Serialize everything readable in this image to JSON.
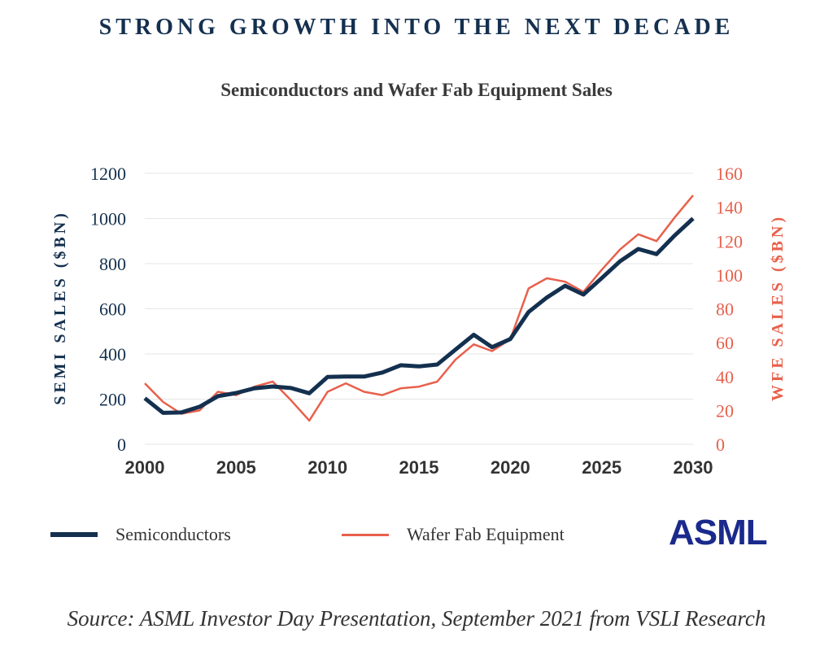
{
  "headline": "STRONG GROWTH INTO THE NEXT DECADE",
  "colors": {
    "semis": "#14304f",
    "wfe": "#e8604c",
    "logo": "#1a2a8c",
    "grid": "#e6e6e6"
  },
  "logo_text": "ASML",
  "source": "Source: ASML Investor Day Presentation, September 2021 from VSLI Research",
  "chart_data": {
    "type": "line",
    "title": "Semiconductors and Wafer Fab Equipment Sales",
    "xlabel": "",
    "ylabel": "SEMI SALES ($BN)",
    "y2label": "WFE SALES ($BN)",
    "xlim": [
      2000,
      2030
    ],
    "ylim": [
      0,
      1200
    ],
    "y2lim": [
      0,
      160
    ],
    "xticks": [
      2000,
      2005,
      2010,
      2015,
      2020,
      2025,
      2030
    ],
    "yticks": [
      0,
      200,
      400,
      600,
      800,
      1000,
      1200
    ],
    "y2ticks": [
      0,
      20,
      40,
      60,
      80,
      100,
      120,
      140,
      160
    ],
    "grid": true,
    "legend_position": "bottom",
    "x": [
      2000,
      2001,
      2002,
      2003,
      2004,
      2005,
      2006,
      2007,
      2008,
      2009,
      2010,
      2011,
      2012,
      2013,
      2014,
      2015,
      2016,
      2017,
      2018,
      2019,
      2020,
      2021,
      2022,
      2023,
      2024,
      2025,
      2026,
      2027,
      2028,
      2029,
      2030
    ],
    "series": [
      {
        "name": "Semiconductors",
        "axis": "left",
        "values": [
          204,
          139,
          141,
          166,
          213,
          227,
          248,
          256,
          249,
          226,
          298,
          300,
          300,
          318,
          350,
          345,
          353,
          419,
          485,
          430,
          466,
          586,
          650,
          702,
          663,
          736,
          810,
          865,
          842,
          925,
          1000
        ]
      },
      {
        "name": "Wafer Fab Equipment",
        "axis": "right",
        "values": [
          36,
          25,
          18,
          20,
          31,
          29,
          34,
          37,
          26,
          14,
          31,
          36,
          31,
          29,
          33,
          34,
          37,
          50,
          59,
          55,
          62,
          92,
          98,
          96,
          90,
          103,
          115,
          124,
          120,
          134,
          147
        ]
      }
    ]
  }
}
